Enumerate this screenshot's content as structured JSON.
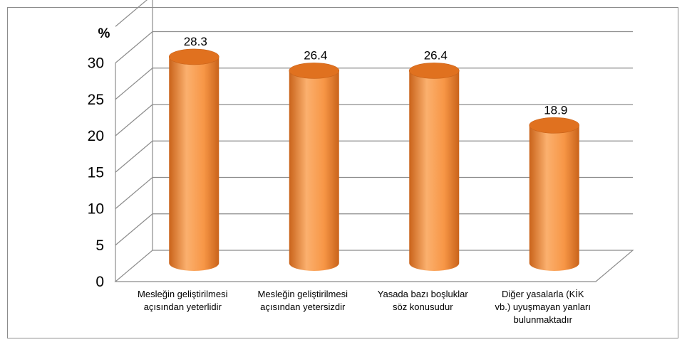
{
  "chart_data": {
    "type": "bar",
    "style": "3d-cylinder",
    "ylabel": "%",
    "categories": [
      [
        "Mesleğin geliştirilmesi",
        "açısından yeterlidir"
      ],
      [
        "Mesleğin geliştirilmesi",
        "açısından yetersizdir"
      ],
      [
        "Yasada bazı boşluklar",
        "söz konusudur"
      ],
      [
        "Diğer yasalarla (KİK",
        "vb.) uyuşmayan yanları",
        "bulunmaktadır"
      ]
    ],
    "values": [
      28.3,
      26.4,
      26.4,
      18.9
    ],
    "value_labels": [
      "28.3",
      "26.4",
      "26.4",
      "18.9"
    ],
    "yticks": [
      0,
      5,
      10,
      15,
      20,
      25,
      30
    ],
    "ylim": [
      0,
      35
    ],
    "grid": true,
    "legend": "none",
    "colors": {
      "bar": "#f79646",
      "bar_light": "#fbb06e",
      "bar_dark": "#c9631a",
      "top": "#e0711f",
      "grid": "#8c8c8c"
    }
  }
}
